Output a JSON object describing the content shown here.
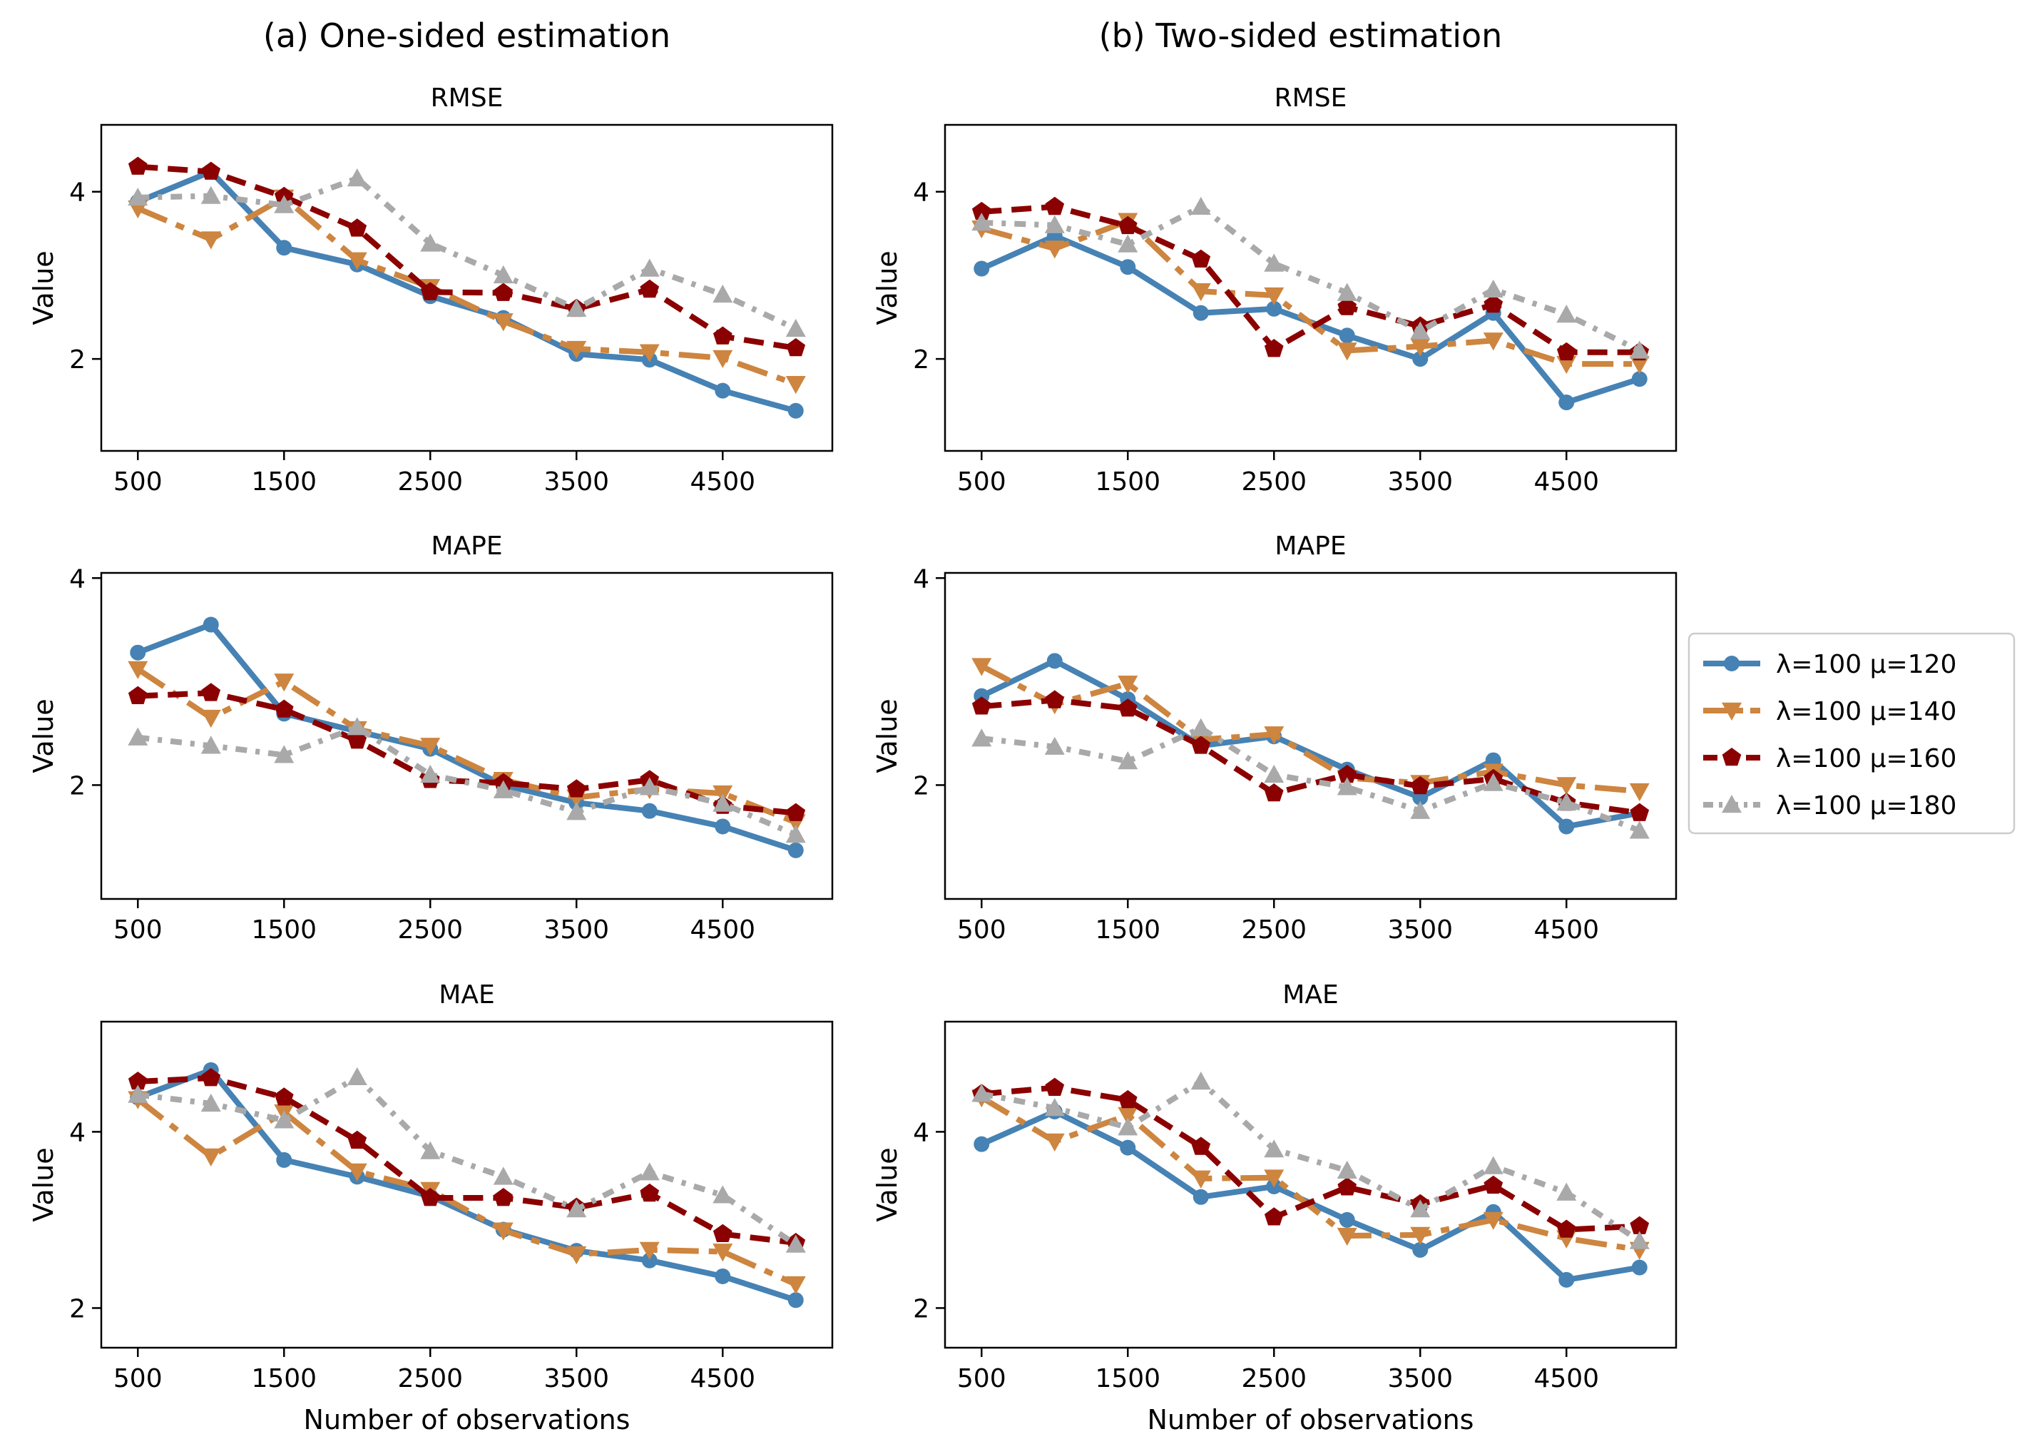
{
  "legend": {
    "series_labels": [
      "λ=100 μ=120",
      "λ=100 μ=140",
      "λ=100 μ=160",
      "λ=100 μ=180"
    ]
  },
  "colors": {
    "s120": "#4682b4",
    "s140": "#cd853f",
    "s160": "#8b0000",
    "s180": "#a9a9a9"
  },
  "chart_data": [
    {
      "type": "line",
      "column": "(a) One-sided estimation",
      "title": "RMSE",
      "xlabel": "",
      "ylabel": "Value",
      "x": [
        500,
        1000,
        1500,
        2000,
        2500,
        3000,
        3500,
        4000,
        4500,
        5000
      ],
      "xticks": [
        500,
        1500,
        2500,
        3500,
        4500
      ],
      "yticks": [
        2,
        4
      ],
      "xlim": [
        250,
        5250
      ],
      "ylim": [
        0.9,
        4.8
      ],
      "series": [
        {
          "name": "λ=100 μ=120",
          "values": [
            3.88,
            4.24,
            3.33,
            3.13,
            2.75,
            2.49,
            2.06,
            1.99,
            1.62,
            1.38
          ]
        },
        {
          "name": "λ=100 μ=140",
          "values": [
            3.8,
            3.43,
            3.93,
            3.18,
            2.86,
            2.45,
            2.12,
            2.08,
            2.01,
            1.7
          ]
        },
        {
          "name": "λ=100 μ=160",
          "values": [
            4.3,
            4.24,
            3.94,
            3.56,
            2.8,
            2.79,
            2.6,
            2.83,
            2.27,
            2.13
          ]
        },
        {
          "name": "λ=100 μ=180",
          "values": [
            3.93,
            3.95,
            3.84,
            4.16,
            3.38,
            3.0,
            2.6,
            3.08,
            2.77,
            2.36
          ]
        }
      ]
    },
    {
      "type": "line",
      "column": "(b) Two-sided estimation",
      "title": "RMSE",
      "xlabel": "",
      "ylabel": "Value",
      "x": [
        500,
        1000,
        1500,
        2000,
        2500,
        3000,
        3500,
        4000,
        4500,
        5000
      ],
      "xticks": [
        500,
        1500,
        2500,
        3500,
        4500
      ],
      "yticks": [
        2,
        4
      ],
      "xlim": [
        250,
        5250
      ],
      "ylim": [
        0.9,
        4.8
      ],
      "series": [
        {
          "name": "λ=100 μ=120",
          "values": [
            3.08,
            3.47,
            3.1,
            2.55,
            2.6,
            2.28,
            2.0,
            2.55,
            1.48,
            1.76
          ]
        },
        {
          "name": "λ=100 μ=140",
          "values": [
            3.56,
            3.32,
            3.65,
            2.81,
            2.76,
            2.1,
            2.15,
            2.22,
            1.94,
            1.94
          ]
        },
        {
          "name": "λ=100 μ=160",
          "values": [
            3.76,
            3.82,
            3.59,
            3.19,
            2.12,
            2.62,
            2.39,
            2.65,
            2.08,
            2.08
          ]
        },
        {
          "name": "λ=100 μ=180",
          "values": [
            3.63,
            3.6,
            3.37,
            3.82,
            3.14,
            2.79,
            2.33,
            2.83,
            2.53,
            2.1
          ]
        }
      ]
    },
    {
      "type": "line",
      "column": "(a) One-sided estimation",
      "title": "MAPE",
      "xlabel": "",
      "ylabel": "Value",
      "x": [
        500,
        1000,
        1500,
        2000,
        2500,
        3000,
        3500,
        4000,
        4500,
        5000
      ],
      "xticks": [
        500,
        1500,
        2500,
        3500,
        4500
      ],
      "yticks": [
        2,
        4
      ],
      "xlim": [
        250,
        5250
      ],
      "ylim": [
        0.9,
        4.05
      ],
      "series": [
        {
          "name": "λ=100 μ=120",
          "values": [
            3.28,
            3.55,
            2.69,
            2.52,
            2.35,
            2.0,
            1.83,
            1.75,
            1.6,
            1.37
          ]
        },
        {
          "name": "λ=100 μ=140",
          "values": [
            3.12,
            2.65,
            3.0,
            2.54,
            2.38,
            2.05,
            1.88,
            1.96,
            1.92,
            1.64
          ]
        },
        {
          "name": "λ=100 μ=160",
          "values": [
            2.86,
            2.89,
            2.73,
            2.43,
            2.05,
            2.02,
            1.96,
            2.05,
            1.8,
            1.73
          ]
        },
        {
          "name": "λ=100 μ=180",
          "values": [
            2.46,
            2.38,
            2.29,
            2.56,
            2.1,
            1.95,
            1.74,
            1.98,
            1.82,
            1.52
          ]
        }
      ]
    },
    {
      "type": "line",
      "column": "(b) Two-sided estimation",
      "title": "MAPE",
      "xlabel": "",
      "ylabel": "Value",
      "x": [
        500,
        1000,
        1500,
        2000,
        2500,
        3000,
        3500,
        4000,
        4500,
        5000
      ],
      "xticks": [
        500,
        1500,
        2500,
        3500,
        4500
      ],
      "yticks": [
        2,
        4
      ],
      "xlim": [
        250,
        5250
      ],
      "ylim": [
        0.9,
        4.05
      ],
      "series": [
        {
          "name": "λ=100 μ=120",
          "values": [
            2.86,
            3.2,
            2.83,
            2.38,
            2.47,
            2.15,
            1.88,
            2.24,
            1.6,
            1.73
          ]
        },
        {
          "name": "λ=100 μ=140",
          "values": [
            3.15,
            2.78,
            2.98,
            2.44,
            2.49,
            2.07,
            2.02,
            2.13,
            2.0,
            1.94
          ]
        },
        {
          "name": "λ=100 μ=160",
          "values": [
            2.76,
            2.82,
            2.74,
            2.38,
            1.92,
            2.1,
            1.99,
            2.06,
            1.83,
            1.73
          ]
        },
        {
          "name": "λ=100 μ=180",
          "values": [
            2.45,
            2.37,
            2.23,
            2.55,
            2.1,
            1.98,
            1.75,
            2.02,
            1.83,
            1.56
          ]
        }
      ]
    },
    {
      "type": "line",
      "column": "(a) One-sided estimation",
      "title": "MAE",
      "xlabel": "Number of observations",
      "ylabel": "Value",
      "x": [
        500,
        1000,
        1500,
        2000,
        2500,
        3000,
        3500,
        4000,
        4500,
        5000
      ],
      "xticks": [
        500,
        1500,
        2500,
        3500,
        4500
      ],
      "yticks": [
        2,
        4
      ],
      "xlim": [
        250,
        5250
      ],
      "ylim": [
        1.55,
        5.25
      ],
      "series": [
        {
          "name": "λ=100 μ=120",
          "values": [
            4.39,
            4.7,
            3.68,
            3.49,
            3.27,
            2.89,
            2.65,
            2.54,
            2.36,
            2.09
          ]
        },
        {
          "name": "λ=100 μ=140",
          "values": [
            4.37,
            3.72,
            4.22,
            3.55,
            3.34,
            2.88,
            2.61,
            2.66,
            2.64,
            2.27
          ]
        },
        {
          "name": "λ=100 μ=160",
          "values": [
            4.57,
            4.61,
            4.39,
            3.9,
            3.25,
            3.25,
            3.14,
            3.3,
            2.84,
            2.74
          ]
        },
        {
          "name": "λ=100 μ=180",
          "values": [
            4.42,
            4.32,
            4.13,
            4.62,
            3.78,
            3.49,
            3.12,
            3.54,
            3.28,
            2.72
          ]
        }
      ]
    },
    {
      "type": "line",
      "column": "(b) Two-sided estimation",
      "title": "MAE",
      "xlabel": "Number of observations",
      "ylabel": "Value",
      "x": [
        500,
        1000,
        1500,
        2000,
        2500,
        3000,
        3500,
        4000,
        4500,
        5000
      ],
      "xticks": [
        500,
        1500,
        2500,
        3500,
        4500
      ],
      "yticks": [
        2,
        4
      ],
      "xlim": [
        250,
        5250
      ],
      "ylim": [
        1.55,
        5.25
      ],
      "series": [
        {
          "name": "λ=100 μ=120",
          "values": [
            3.86,
            4.23,
            3.82,
            3.26,
            3.38,
            3.0,
            2.66,
            3.09,
            2.32,
            2.46
          ]
        },
        {
          "name": "λ=100 μ=140",
          "values": [
            4.39,
            3.89,
            4.19,
            3.47,
            3.48,
            2.82,
            2.83,
            3.0,
            2.79,
            2.66
          ]
        },
        {
          "name": "λ=100 μ=160",
          "values": [
            4.43,
            4.5,
            4.36,
            3.83,
            3.03,
            3.37,
            3.18,
            3.39,
            2.89,
            2.93
          ]
        },
        {
          "name": "λ=100 μ=180",
          "values": [
            4.43,
            4.27,
            4.05,
            4.57,
            3.8,
            3.56,
            3.12,
            3.61,
            3.31,
            2.76
          ]
        }
      ]
    }
  ]
}
